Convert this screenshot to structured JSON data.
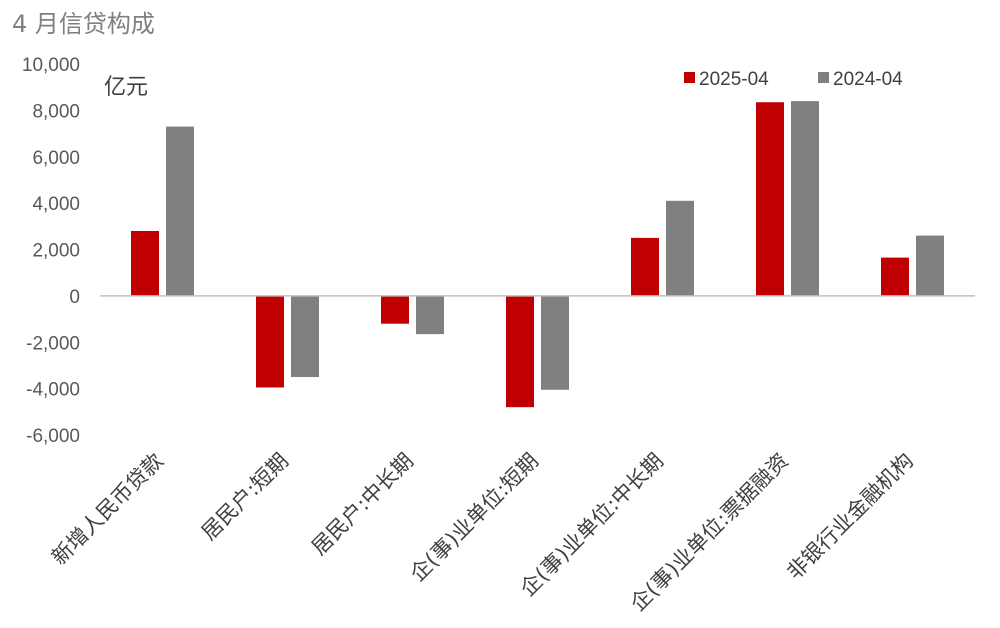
{
  "chart_data": {
    "type": "bar",
    "title": "4 月信贷构成",
    "unit_label": "亿元",
    "categories": [
      "新增人民币贷款",
      "居民户:短期",
      "居民户:中长期",
      "企(事)业单位:短期",
      "企(事)业单位:中长期",
      "企(事)业单位:票据融资",
      "非银行业金融机构"
    ],
    "series": [
      {
        "name": "2025-04",
        "color": "#c00000",
        "values": [
          2800,
          -3950,
          -1200,
          -4800,
          2500,
          8350,
          1650
        ]
      },
      {
        "name": "2024-04",
        "color": "#808080",
        "values": [
          7300,
          -3500,
          -1650,
          -4050,
          4100,
          8400,
          2600
        ]
      }
    ],
    "ylim": [
      -6000,
      10000
    ],
    "yticks": [
      10000,
      8000,
      6000,
      4000,
      2000,
      0,
      -2000,
      -4000,
      -6000
    ],
    "ytick_labels": [
      "10,000",
      "8,000",
      "6,000",
      "4,000",
      "2,000",
      "0",
      "-2,000",
      "-4,000",
      "-6,000"
    ],
    "grid": false,
    "legend_position": "top-right"
  }
}
